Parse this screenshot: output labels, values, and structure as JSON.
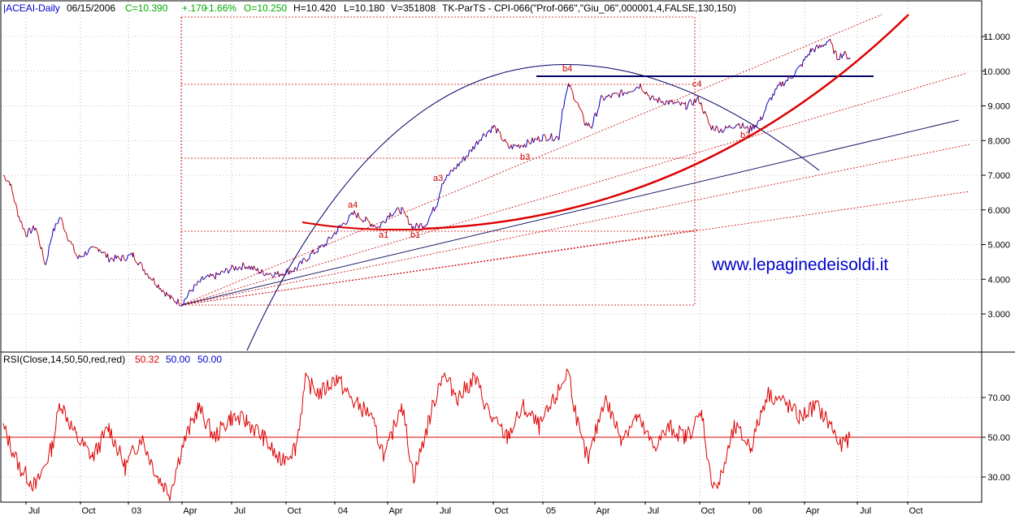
{
  "header": {
    "symbol": "|ACEAI-Daily",
    "date": "06/15/2006",
    "close": "C=10.390",
    "change": "+.170",
    "change_pct": "+1.66%",
    "open": "O=10.250",
    "high": "H=10.420",
    "low": "L=10.180",
    "volume": "V=351808",
    "indicator": "TK-ParTS - CPI-066(\"Prof-066\",\"Giu_06\",000001,4,FALSE,130,150)"
  },
  "rsi_header": {
    "label": "RSI(Close,14,50,50,red,red)",
    "value": "50.32",
    "level_a": "50.00",
    "level_b": "50.00"
  },
  "watermark": "www.lepaginedeisoldi.it",
  "colors": {
    "price": "#0000cc",
    "price_down": "#cc0000",
    "rsi": "#dd0000",
    "grid": "#808080",
    "green": "#00aa00",
    "title_blue": "#0000cc"
  },
  "chart_data": [
    {
      "type": "line",
      "title": "ACEAI-Daily",
      "ylim": [
        2.0,
        12.0
      ],
      "yticks": [
        "3.000",
        "4.000",
        "5.000",
        "6.000",
        "7.000",
        "8.000",
        "9.000",
        "10.000",
        "11.000"
      ],
      "xticks": [
        "Jul",
        "Oct",
        "03",
        "Apr",
        "Jul",
        "Oct",
        "04",
        "Apr",
        "Jul",
        "Oct",
        "05",
        "Apr",
        "Jul",
        "Oct",
        "06",
        "Apr",
        "Jul",
        "Oct"
      ],
      "series": [
        {
          "points": [
            [
              0,
              7.0
            ],
            [
              8,
              6.8
            ],
            [
              18,
              5.9
            ],
            [
              28,
              5.3
            ],
            [
              40,
              5.5
            ],
            [
              52,
              4.4
            ],
            [
              60,
              5.3
            ],
            [
              70,
              5.8
            ],
            [
              80,
              5.2
            ],
            [
              92,
              4.6
            ],
            [
              104,
              4.8
            ],
            [
              118,
              4.9
            ],
            [
              130,
              4.6
            ],
            [
              146,
              4.6
            ],
            [
              160,
              4.7
            ],
            [
              176,
              4.2
            ],
            [
              192,
              3.8
            ],
            [
              206,
              3.45
            ],
            [
              220,
              3.3
            ],
            [
              232,
              3.7
            ],
            [
              246,
              4.0
            ],
            [
              262,
              4.1
            ],
            [
              280,
              4.3
            ],
            [
              298,
              4.4
            ],
            [
              318,
              4.2
            ],
            [
              338,
              4.15
            ],
            [
              360,
              4.3
            ],
            [
              378,
              4.7
            ],
            [
              396,
              5.0
            ],
            [
              414,
              5.5
            ],
            [
              432,
              5.9
            ],
            [
              446,
              5.7
            ],
            [
              462,
              5.5
            ],
            [
              476,
              5.9
            ],
            [
              490,
              6.0
            ],
            [
              504,
              5.5
            ],
            [
              520,
              5.6
            ],
            [
              534,
              6.2
            ],
            [
              540,
              6.8
            ],
            [
              556,
              7.2
            ],
            [
              572,
              7.6
            ],
            [
              588,
              8.1
            ],
            [
              604,
              8.4
            ],
            [
              622,
              7.8
            ],
            [
              642,
              7.9
            ],
            [
              664,
              8.1
            ],
            [
              684,
              8.1
            ],
            [
              688,
              8.9
            ],
            [
              696,
              9.6
            ],
            [
              706,
              9.1
            ],
            [
              716,
              8.5
            ],
            [
              724,
              8.4
            ],
            [
              736,
              9.2
            ],
            [
              752,
              9.3
            ],
            [
              766,
              9.4
            ],
            [
              784,
              9.6
            ],
            [
              798,
              9.2
            ],
            [
              820,
              9.1
            ],
            [
              840,
              9.0
            ],
            [
              856,
              9.2
            ],
            [
              870,
              8.4
            ],
            [
              886,
              8.3
            ],
            [
              904,
              8.5
            ],
            [
              918,
              8.3
            ],
            [
              932,
              8.6
            ],
            [
              944,
              9.2
            ],
            [
              956,
              9.6
            ],
            [
              968,
              9.8
            ],
            [
              980,
              10.1
            ],
            [
              994,
              10.6
            ],
            [
              1006,
              10.7
            ],
            [
              1016,
              10.9
            ],
            [
              1026,
              10.4
            ],
            [
              1034,
              10.5
            ],
            [
              1042,
              10.39
            ]
          ]
        }
      ],
      "annotations": [
        "a1",
        "a3",
        "a4",
        "b1",
        "b2",
        "b3",
        "b4",
        "c4"
      ]
    },
    {
      "type": "line",
      "title": "RSI(Close,14,50,50,red,red)",
      "ylim": [
        15,
        90
      ],
      "yticks": [
        "30.00",
        "50.00",
        "70.00"
      ],
      "reference_level": 50,
      "series": [
        {
          "points": [
            [
              0,
              55
            ],
            [
              20,
              35
            ],
            [
              40,
              25
            ],
            [
              60,
              45
            ],
            [
              70,
              68
            ],
            [
              90,
              50
            ],
            [
              110,
              40
            ],
            [
              130,
              55
            ],
            [
              150,
              35
            ],
            [
              170,
              50
            ],
            [
              190,
              30
            ],
            [
              205,
              22
            ],
            [
              220,
              45
            ],
            [
              240,
              65
            ],
            [
              260,
              50
            ],
            [
              280,
              60
            ],
            [
              300,
              58
            ],
            [
              320,
              50
            ],
            [
              340,
              38
            ],
            [
              360,
              45
            ],
            [
              372,
              78
            ],
            [
              390,
              72
            ],
            [
              410,
              80
            ],
            [
              430,
              68
            ],
            [
              450,
              62
            ],
            [
              470,
              40
            ],
            [
              490,
              68
            ],
            [
              505,
              30
            ],
            [
              525,
              60
            ],
            [
              540,
              82
            ],
            [
              560,
              70
            ],
            [
              580,
              80
            ],
            [
              600,
              60
            ],
            [
              620,
              50
            ],
            [
              640,
              65
            ],
            [
              660,
              55
            ],
            [
              680,
              70
            ],
            [
              695,
              84
            ],
            [
              710,
              50
            ],
            [
              720,
              38
            ],
            [
              740,
              70
            ],
            [
              760,
              50
            ],
            [
              780,
              60
            ],
            [
              800,
              45
            ],
            [
              820,
              55
            ],
            [
              840,
              50
            ],
            [
              860,
              62
            ],
            [
              870,
              30
            ],
            [
              880,
              25
            ],
            [
              900,
              55
            ],
            [
              920,
              45
            ],
            [
              940,
              72
            ],
            [
              960,
              68
            ],
            [
              980,
              60
            ],
            [
              1000,
              66
            ],
            [
              1020,
              55
            ],
            [
              1030,
              45
            ],
            [
              1042,
              50.32
            ]
          ]
        }
      ]
    }
  ]
}
